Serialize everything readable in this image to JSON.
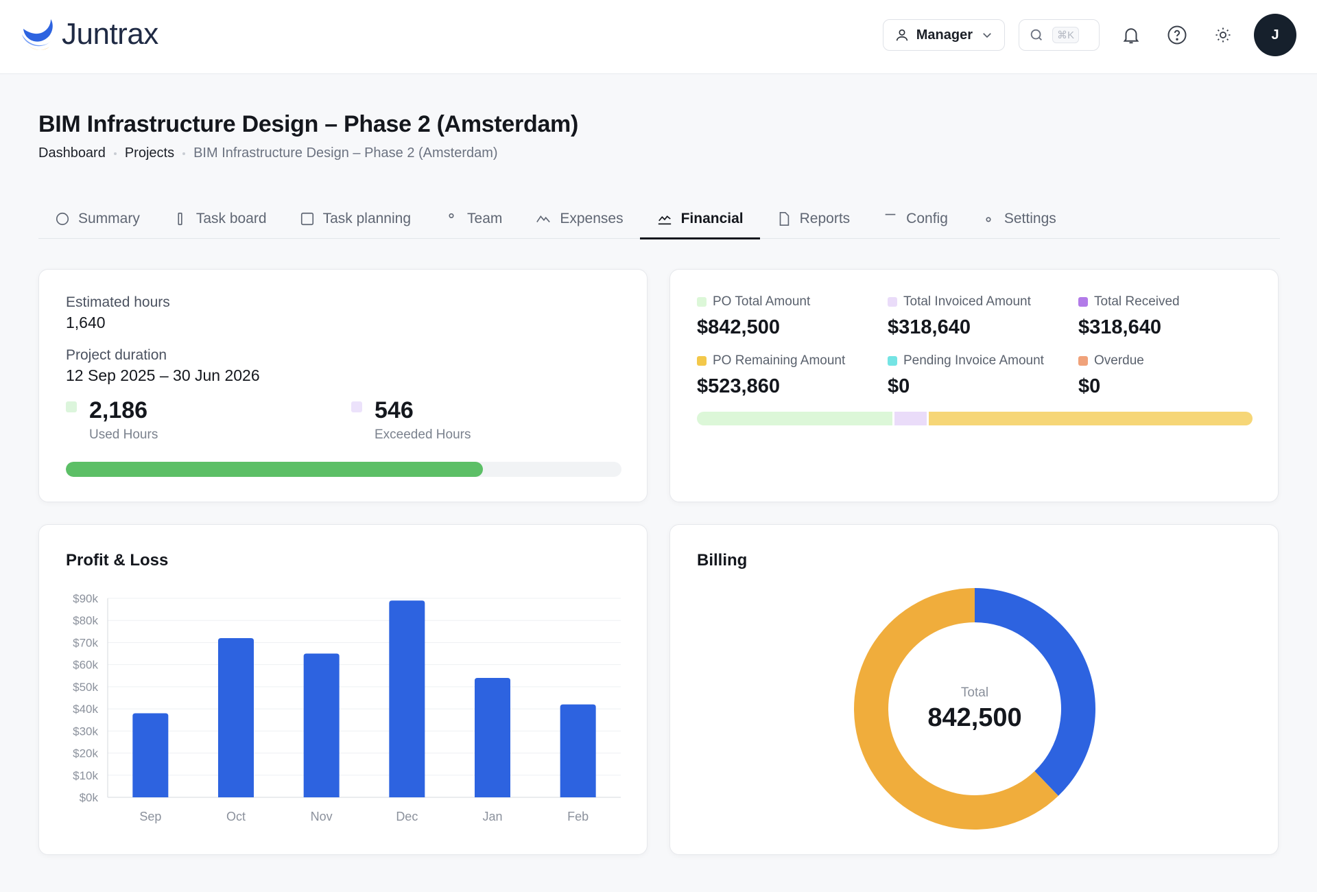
{
  "header": {
    "brand": "Juntrax",
    "role_label": "Manager",
    "search_shortcut": "⌘K",
    "avatar_initial": "J"
  },
  "page": {
    "title": "BIM Infrastructure Design – Phase 2 (Amsterdam)",
    "breadcrumb": [
      "Dashboard",
      "Projects",
      "BIM Infrastructure Design – Phase 2 (Amsterdam)"
    ]
  },
  "tabs": [
    {
      "label": "Summary",
      "icon": "circle-icon"
    },
    {
      "label": "Task board",
      "icon": "bar-icon"
    },
    {
      "label": "Task planning",
      "icon": "square-icon"
    },
    {
      "label": "Team",
      "icon": "dot-icon"
    },
    {
      "label": "Expenses",
      "icon": "trend-icon"
    },
    {
      "label": "Financial",
      "icon": "chart-line-icon",
      "active": true
    },
    {
      "label": "Reports",
      "icon": "document-icon"
    },
    {
      "label": "Config",
      "icon": "minus-icon"
    },
    {
      "label": "Settings",
      "icon": "dot-icon"
    }
  ],
  "hours": {
    "estimated_label": "Estimated hours",
    "estimated_value": "1,640",
    "duration_label": "Project duration",
    "duration_value": "12 Sep 2025 – 30 Jun 2026",
    "used_value": "2,186",
    "used_label": "Used Hours",
    "exceeded_value": "546",
    "exceeded_label": "Exceeded Hours",
    "progress_fraction": 0.75,
    "colors": {
      "used": "#dcf5dc",
      "exceeded": "#ece2fb",
      "bar": "#5cbf66"
    }
  },
  "po": {
    "items": [
      {
        "label": "PO Total Amount",
        "amount": "$842,500",
        "color": "#dcf7d8"
      },
      {
        "label": "Total Invoiced Amount",
        "amount": "$318,640",
        "color": "#eadcf9"
      },
      {
        "label": "Total Received",
        "amount": "$318,640",
        "color": "#b27be8"
      },
      {
        "label": "PO Remaining Amount",
        "amount": "$523,860",
        "color": "#f3c84a"
      },
      {
        "label": "Pending Invoice Amount",
        "amount": "$0",
        "color": "#74e4e4"
      },
      {
        "label": "Overdue",
        "amount": "$0",
        "color": "#f0a27a"
      }
    ],
    "bar_segments": [
      {
        "fraction": 0.355,
        "color": "#dcf7d8"
      },
      {
        "fraction": 0.058,
        "color": "#eadcf9"
      },
      {
        "fraction": 0.587,
        "color": "#f6d677"
      }
    ]
  },
  "profit_loss": {
    "title": "Profit & Loss"
  },
  "billing": {
    "title": "Billing",
    "total_label": "Total",
    "total_value": "842,500"
  },
  "chart_data": [
    {
      "type": "bar",
      "title": "Profit & Loss",
      "categories": [
        "Sep",
        "Oct",
        "Nov",
        "Dec",
        "Jan",
        "Feb"
      ],
      "values": [
        38000,
        72000,
        65000,
        89000,
        54000,
        42000
      ],
      "ylim": [
        0,
        90000
      ],
      "yticks": [
        "$0k",
        "$10k",
        "$20k",
        "$30k",
        "$40k",
        "$50k",
        "$60k",
        "$70k",
        "$80k",
        "$90k"
      ],
      "grid": true,
      "color": "#2d63e0"
    },
    {
      "type": "pie",
      "title": "Billing",
      "series": [
        {
          "value": 318640,
          "color": "#2d63e0"
        },
        {
          "value": 523860,
          "color": "#f0ad3c"
        }
      ]
    }
  ]
}
